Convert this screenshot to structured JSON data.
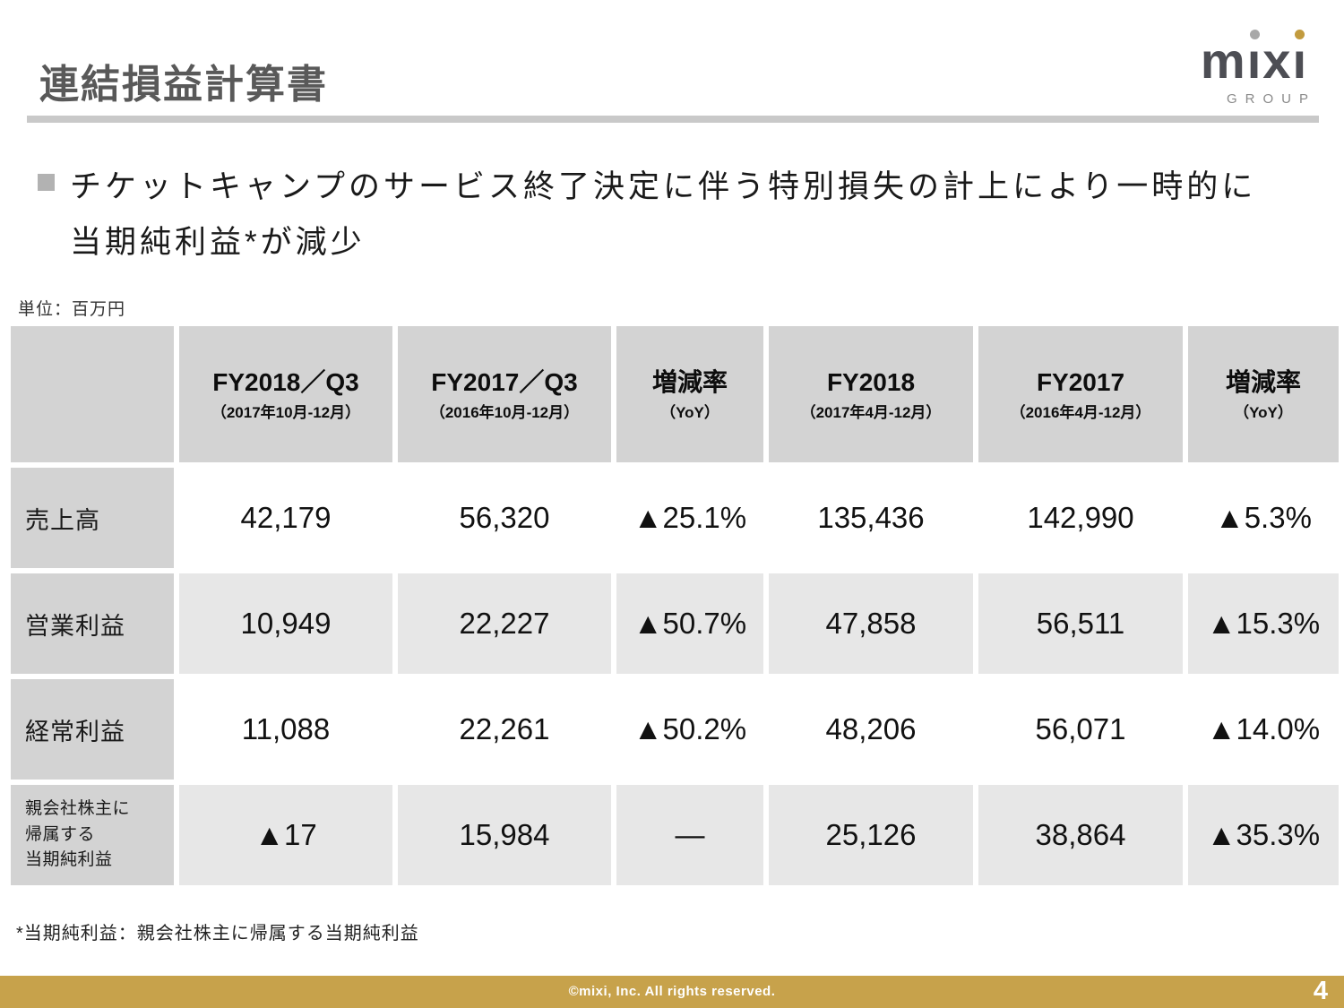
{
  "slide": {
    "title": "連結損益計算書",
    "bullet_line1": "チケットキャンプのサービス終了決定に伴う特別損失の計上により一時的に",
    "bullet_line2": "当期純利益*が減少",
    "unit_note": "単位：百万円",
    "footnote": "*当期純利益：親会社株主に帰属する当期純利益",
    "footer_copyright": "©mixi, Inc. All rights reserved.",
    "page_number": "4"
  },
  "logo": {
    "name": "mixi",
    "group": "GROUP",
    "letters": [
      "m",
      "ı",
      "x",
      "ı"
    ],
    "dot1_color": "#a8a8a8",
    "dot2_color": "#c29b3e"
  },
  "colors": {
    "accent_gold": "#c7a24b",
    "header_cell_bg": "#d3d3d3",
    "alt_row_bg": "#e7e7e7",
    "title_gray": "#595959"
  },
  "table": {
    "headers": [
      {
        "title": "",
        "subtitle": ""
      },
      {
        "title": "FY2018／Q3",
        "subtitle": "（2017年10月-12月）"
      },
      {
        "title": "FY2017／Q3",
        "subtitle": "（2016年10月-12月）"
      },
      {
        "title": "増減率",
        "subtitle": "（YoY）"
      },
      {
        "title": "FY2018",
        "subtitle": "（2017年4月-12月）"
      },
      {
        "title": "FY2017",
        "subtitle": "（2016年4月-12月）"
      },
      {
        "title": "増減率",
        "subtitle": "（YoY）"
      }
    ],
    "rows": [
      {
        "label": "売上高",
        "values": [
          "42,179",
          "56,320",
          "▲25.1%",
          "135,436",
          "142,990",
          "▲5.3%"
        ]
      },
      {
        "label": "営業利益",
        "values": [
          "10,949",
          "22,227",
          "▲50.7%",
          "47,858",
          "56,511",
          "▲15.3%"
        ]
      },
      {
        "label": "経常利益",
        "values": [
          "11,088",
          "22,261",
          "▲50.2%",
          "48,206",
          "56,071",
          "▲14.0%"
        ]
      },
      {
        "label": "親会社株主に\n帰属する\n当期純利益",
        "values": [
          "▲17",
          "15,984",
          "—",
          "25,126",
          "38,864",
          "▲35.3%"
        ]
      }
    ]
  }
}
